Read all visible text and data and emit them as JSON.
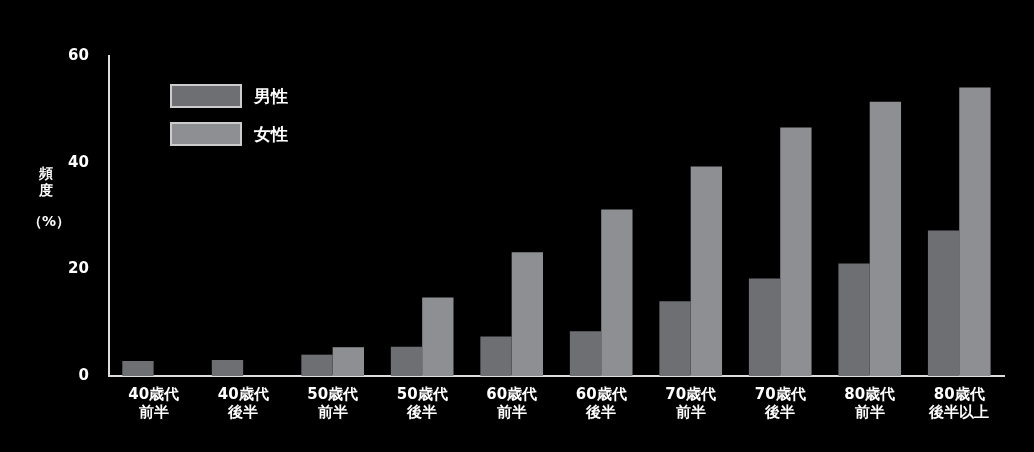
{
  "chart_data": {
    "type": "bar",
    "ylabel": "頻度（%）",
    "categories": [
      "40歳代前半",
      "40歳代後半",
      "50歳代前半",
      "50歳代後半",
      "60歳代前半",
      "60歳代後半",
      "70歳代前半",
      "70歳代後半",
      "80歳代前半",
      "80歳代後半以上"
    ],
    "series": [
      {
        "name": "男性",
        "color": "#6e6f73",
        "values": [
          2.8,
          3.0,
          4.0,
          5.5,
          7.4,
          8.4,
          14.0,
          18.3,
          21.1,
          27.3
        ]
      },
      {
        "name": "女性",
        "color": "#8e8f93",
        "values": [
          0,
          0,
          5.4,
          14.7,
          23.2,
          31.2,
          39.3,
          46.6,
          51.4,
          54.1
        ]
      }
    ],
    "ylim": [
      0,
      60
    ],
    "yticks": [
      0,
      20,
      40,
      60
    ],
    "grid": false,
    "legend": "top left"
  }
}
